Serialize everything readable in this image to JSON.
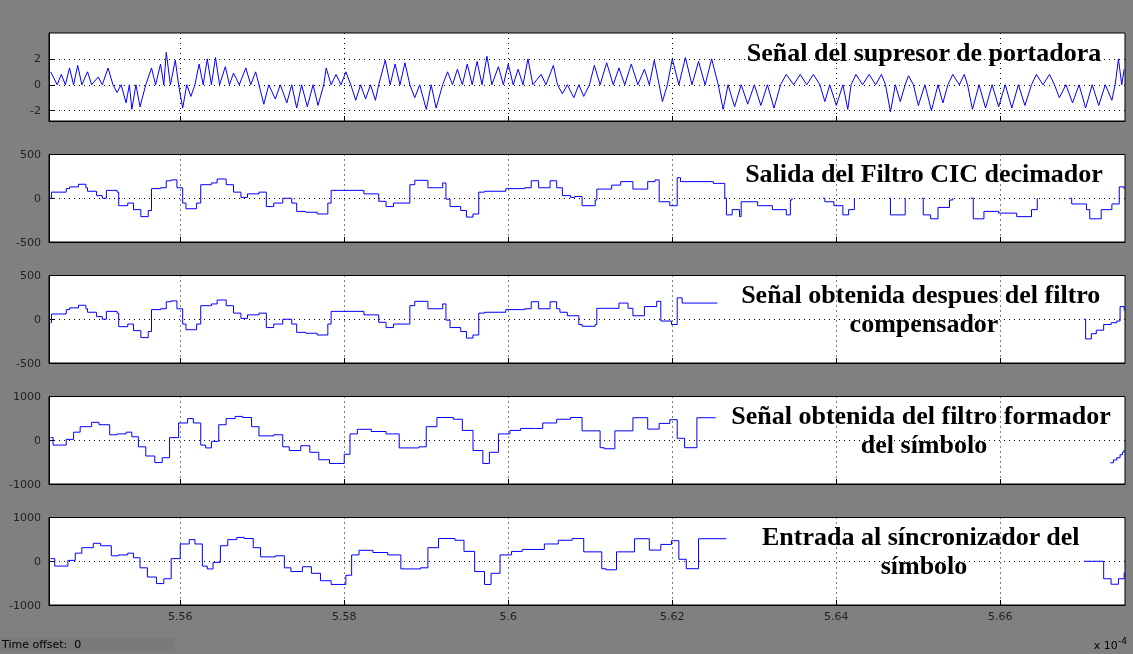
{
  "chart_data": [
    {
      "type": "line",
      "title": "Señal del supresor de portadora",
      "color": "#0000ff",
      "xlim": [
        5.544,
        5.6752
      ],
      "xticks": [
        5.56,
        5.58,
        5.6,
        5.62,
        5.64,
        5.66
      ],
      "ylim": [
        -2.8,
        4
      ],
      "yticks": [
        -2,
        0,
        2
      ],
      "grid": true,
      "tick_labels": "y",
      "x": [
        5.5442,
        5.545,
        5.5455,
        5.546,
        5.5465,
        5.547,
        5.5475,
        5.548,
        5.5487,
        5.5492,
        5.55,
        5.5505,
        5.5512,
        5.5518,
        5.5523,
        5.5528,
        5.5534,
        5.5538,
        5.5541,
        5.5546,
        5.5551,
        5.5558,
        5.5565,
        5.557,
        5.5576,
        5.558,
        5.5583,
        5.5588,
        5.5594,
        5.5598,
        5.5603,
        5.5608,
        5.5613,
        5.5618,
        5.5623,
        5.5628,
        5.5633,
        5.5638,
        5.5643,
        5.5648,
        5.5655,
        5.566,
        5.5665,
        5.5672,
        5.568,
        5.5686,
        5.5692,
        5.5696,
        5.5702,
        5.5708,
        5.5716,
        5.5722,
        5.573,
        5.5736,
        5.5742,
        5.5748,
        5.5755,
        5.5762,
        5.5768,
        5.5775,
        5.5778,
        5.5784,
        5.579,
        5.5796,
        5.5802,
        5.5808,
        5.5814,
        5.582,
        5.5826,
        5.5832,
        5.5838,
        5.5842,
        5.585,
        5.5856,
        5.5862,
        5.5868,
        5.5874,
        5.588,
        5.5886,
        5.5892,
        5.59,
        5.5906,
        5.5912,
        5.592,
        5.5926,
        5.5932,
        5.5938,
        5.5944,
        5.595,
        5.5956,
        5.5962,
        5.5968,
        5.5974,
        5.598,
        5.5988,
        5.5994,
        5.6,
        5.6006,
        5.6012,
        5.6018,
        5.6024,
        5.603,
        5.604,
        5.6046,
        5.6055,
        5.606,
        5.6066,
        5.6072,
        5.608,
        5.6086,
        5.6092,
        5.6099,
        5.6105,
        5.6112,
        5.612,
        5.6128,
        5.6135,
        5.6142,
        5.615,
        5.6158,
        5.6166,
        5.6172,
        5.6178,
        5.6184,
        5.6188,
        5.6194,
        5.62,
        5.6208,
        5.6216,
        5.6224,
        5.6232,
        5.624,
        5.6248,
        5.6256,
        5.6262,
        5.6268,
        5.6276,
        5.6284,
        5.6292,
        5.63,
        5.6308,
        5.6316,
        5.6324,
        5.6332,
        5.6339,
        5.6348,
        5.6356,
        5.6364,
        5.6372,
        5.638,
        5.6386,
        5.6392,
        5.64,
        5.6408,
        5.6414,
        5.6418,
        5.6424,
        5.6432,
        5.644,
        5.6448,
        5.6455,
        5.646,
        5.6466,
        5.6472,
        5.6478,
        5.6484,
        5.6488,
        5.6494,
        5.65,
        5.6508,
        5.6516,
        5.6524,
        5.653,
        5.6536,
        5.6542,
        5.655,
        5.6556,
        5.656,
        5.6566,
        5.6574,
        5.6582,
        5.659,
        5.6598,
        5.6606,
        5.6614,
        5.6622,
        5.663,
        5.6638,
        5.6644,
        5.6652,
        5.666,
        5.6666,
        5.6672,
        5.668,
        5.6688,
        5.6696,
        5.6704,
        5.6712,
        5.672,
        5.6728,
        5.6736,
        5.674,
        5.6744,
        5.6748,
        5.6751
      ],
      "values": [
        1.0,
        0,
        0.8,
        0,
        1.3,
        0,
        1.5,
        0,
        1.0,
        0,
        0.6,
        0,
        1.3,
        0,
        -0.6,
        0,
        -1.4,
        0,
        -1.9,
        0,
        -1.7,
        0,
        1.3,
        0,
        1.6,
        0,
        2.5,
        0,
        1.9,
        0,
        -1.8,
        0,
        -0.9,
        0,
        1.6,
        0,
        2.0,
        0,
        2.1,
        0,
        1.4,
        0,
        0.9,
        0,
        1.3,
        0,
        1.0,
        0,
        -1.5,
        0,
        -1.1,
        0,
        -1.4,
        0,
        -1.8,
        0,
        -1.7,
        0,
        -1.6,
        0,
        1.3,
        0,
        0.8,
        0,
        1.0,
        0,
        -1.2,
        0,
        -1.1,
        0,
        -1.2,
        0,
        1.9,
        0,
        1.6,
        0,
        1.7,
        0,
        -1.0,
        0,
        -1.9,
        0,
        -1.8,
        0,
        1.0,
        0,
        1.2,
        0,
        1.6,
        0,
        1.8,
        0,
        2.2,
        0,
        1.4,
        0,
        1.6,
        0,
        1.2,
        0,
        2.0,
        0,
        0.8,
        0,
        1.5,
        0,
        -0.7,
        0,
        -1.0,
        0,
        -0.9,
        0,
        1.5,
        0,
        1.7,
        0,
        1.3,
        0,
        1.6,
        0,
        1.2,
        0,
        1.9,
        0,
        -1.3,
        0,
        2.0,
        0,
        2.1,
        0,
        1.8,
        0,
        2.0,
        0,
        -1.9,
        0,
        -1.7,
        0,
        -1.5,
        0,
        -1.6,
        0,
        -1.8,
        0,
        0.8,
        0,
        0.8,
        0,
        0.8,
        0,
        -1.3,
        0,
        -1.6,
        0,
        -1.9,
        0,
        0.8,
        0,
        0.8,
        0,
        0.8,
        0,
        -2.1,
        0,
        -1.3,
        0,
        0.7,
        0,
        -1.6,
        0,
        -2.0,
        0,
        -1.4,
        0,
        0.8,
        0,
        0.8,
        0,
        -1.9,
        0,
        -1.8,
        0,
        -1.7,
        0,
        -1.8,
        0,
        -1.6,
        0,
        0.8,
        0,
        0.8,
        0,
        -1.0,
        0,
        -1.4,
        0,
        -1.8,
        0,
        -1.6,
        0,
        -1.2,
        0,
        2.0,
        0,
        1.2
      ]
    },
    {
      "type": "step",
      "title": "Salida del Filtro CIC decimador",
      "color": "#0000ff",
      "xlim": [
        5.544,
        5.6752
      ],
      "xticks": [
        5.56,
        5.58,
        5.6,
        5.62,
        5.64,
        5.66
      ],
      "ylim": [
        -500,
        500
      ],
      "yticks": [
        -500,
        0,
        500
      ],
      "grid": true,
      "tick_labels": "y",
      "x": [
        5.5442,
        5.5443,
        5.5461,
        5.5465,
        5.5476,
        5.5485,
        5.5487,
        5.5498,
        5.5505,
        5.551,
        5.5523,
        5.5525,
        5.5536,
        5.5543,
        5.5552,
        5.5561,
        5.5565,
        5.5576,
        5.5583,
        5.5589,
        5.5596,
        5.5603,
        5.5607,
        5.562,
        5.5625,
        5.5638,
        5.5645,
        5.5656,
        5.5665,
        5.5674,
        5.5682,
        5.5696,
        5.5705,
        5.5714,
        5.5725,
        5.5736,
        5.5742,
        5.5753,
        5.5767,
        5.578,
        5.5784,
        5.58,
        5.5824,
        5.5842,
        5.5851,
        5.586,
        5.588,
        5.5886,
        5.5902,
        5.592,
        5.5924,
        5.5929,
        5.5942,
        5.5949,
        5.5957,
        5.5964,
        5.5971,
        5.5997,
        5.602,
        5.6028,
        5.6037,
        5.6051,
        5.6059,
        5.6066,
        5.6076,
        5.6081,
        5.609,
        5.6106,
        5.6108,
        5.6126,
        5.6137,
        5.6152,
        5.617,
        5.6179,
        5.6184,
        5.6197,
        5.6206,
        5.621,
        5.625,
        5.6255,
        5.6264,
        5.6266,
        5.6273,
        5.6282,
        5.6284,
        5.6295,
        5.6304,
        5.6322,
        5.6339,
        5.6344,
        5.6346,
        5.635,
        5.6384,
        5.6386,
        5.6397,
        5.6408,
        5.6415,
        5.6422,
        5.6426,
        5.6464,
        5.6466,
        5.6482,
        5.6484,
        5.6488,
        5.6504,
        5.6506,
        5.6515,
        5.6524,
        5.6538,
        5.6542,
        5.6546,
        5.6564,
        5.6567,
        5.658,
        5.6598,
        5.662,
        5.6638,
        5.6645,
        5.665,
        5.6685,
        5.6687,
        5.6705,
        5.6709,
        5.6723,
        5.6736,
        5.6745,
        5.6751
      ],
      "values": [
        0,
        70,
        110,
        130,
        160,
        120,
        80,
        30,
        0,
        90,
        70,
        -85,
        -55,
        -130,
        -210,
        -140,
        110,
        120,
        200,
        210,
        120,
        -55,
        -120,
        -55,
        155,
        175,
        220,
        155,
        70,
        10,
        50,
        70,
        -95,
        -55,
        0,
        -55,
        -150,
        -160,
        -180,
        -55,
        90,
        90,
        50,
        -35,
        -95,
        -55,
        155,
        205,
        120,
        175,
        -10,
        -95,
        -140,
        -215,
        -180,
        70,
        80,
        110,
        120,
        200,
        120,
        200,
        120,
        30,
        10,
        20,
        -85,
        -20,
        105,
        150,
        190,
        105,
        190,
        210,
        -40,
        -85,
        235,
        190,
        170,
        170,
        0,
        -190,
        -130,
        -210,
        -40,
        -40,
        -85,
        -130,
        -190,
        -20,
        0,
        null,
        0,
        -40,
        -85,
        -190,
        -130,
        0,
        null,
        0,
        -190,
        -190,
        0,
        null,
        0,
        -190,
        -235,
        -105,
        -20,
        0,
        null,
        0,
        -235,
        -150,
        -170,
        -210,
        -130,
        0,
        null,
        0,
        -65,
        -130,
        -235,
        -130,
        -65,
        130,
        105
      ]
    },
    {
      "type": "step",
      "title": "Señal obtenida despues del filtro compensador",
      "color": "#0000ff",
      "xlim": [
        5.544,
        5.6752
      ],
      "xticks": [
        5.56,
        5.58,
        5.6,
        5.62,
        5.64,
        5.66
      ],
      "ylim": [
        -500,
        500
      ],
      "yticks": [
        -500,
        0,
        500
      ],
      "grid": true,
      "tick_labels": "y",
      "x": [
        5.5442,
        5.5443,
        5.5461,
        5.5465,
        5.5476,
        5.5485,
        5.5487,
        5.5498,
        5.5505,
        5.551,
        5.5523,
        5.5525,
        5.5536,
        5.5543,
        5.5552,
        5.5561,
        5.5565,
        5.5576,
        5.5583,
        5.5589,
        5.5596,
        5.5603,
        5.5607,
        5.562,
        5.5625,
        5.5638,
        5.5645,
        5.5656,
        5.5665,
        5.5674,
        5.5682,
        5.5696,
        5.5705,
        5.5714,
        5.5725,
        5.5736,
        5.5742,
        5.5753,
        5.5767,
        5.578,
        5.5784,
        5.58,
        5.5824,
        5.5842,
        5.5851,
        5.586,
        5.588,
        5.5886,
        5.5902,
        5.592,
        5.5924,
        5.5929,
        5.5942,
        5.5949,
        5.5957,
        5.5964,
        5.5971,
        5.5997,
        5.602,
        5.6028,
        5.6037,
        5.6051,
        5.6059,
        5.6063,
        5.6072,
        5.6086,
        5.609,
        5.6106,
        5.6108,
        5.6135,
        5.6146,
        5.6152,
        5.6166,
        5.6181,
        5.6186,
        5.6199,
        5.6206,
        5.6212,
        5.6255,
        5.626,
        5.6702,
        5.6704,
        5.6711,
        5.6717,
        5.6726,
        5.6735,
        5.6742,
        5.6746,
        5.6751
      ],
      "values": [
        -40,
        60,
        110,
        130,
        160,
        120,
        80,
        30,
        0,
        90,
        70,
        -85,
        -55,
        -130,
        -210,
        -140,
        110,
        120,
        200,
        210,
        120,
        -55,
        -120,
        -55,
        155,
        175,
        220,
        155,
        70,
        10,
        50,
        70,
        -95,
        -55,
        0,
        -55,
        -150,
        -160,
        -180,
        -55,
        90,
        90,
        50,
        -35,
        -95,
        -55,
        155,
        205,
        120,
        175,
        -10,
        -95,
        -140,
        -215,
        -180,
        70,
        80,
        110,
        120,
        200,
        120,
        200,
        120,
        80,
        40,
        -60,
        -80,
        -60,
        125,
        185,
        125,
        40,
        145,
        205,
        -20,
        -60,
        245,
        185,
        185,
        null,
        0,
        -225,
        -165,
        -125,
        -60,
        -40,
        -20,
        145,
        100
      ]
    },
    {
      "type": "step",
      "title": "Señal obtenida del filtro formador del símbolo",
      "color": "#0000ff",
      "xlim": [
        5.544,
        5.6752
      ],
      "xticks": [
        5.56,
        5.58,
        5.6,
        5.62,
        5.64,
        5.66
      ],
      "ylim": [
        -1000,
        1000
      ],
      "yticks": [
        -1000,
        0,
        1000
      ],
      "grid": true,
      "tick_labels": "y",
      "x": [
        5.5442,
        5.5445,
        5.5461,
        5.547,
        5.5478,
        5.5492,
        5.5501,
        5.5514,
        5.5523,
        5.5534,
        5.5541,
        5.5549,
        5.5558,
        5.5569,
        5.5578,
        5.5587,
        5.5598,
        5.5609,
        5.5616,
        5.5625,
        5.5631,
        5.5638,
        5.5647,
        5.5656,
        5.5667,
        5.5676,
        5.5687,
        5.5696,
        5.5714,
        5.5725,
        5.5733,
        5.5747,
        5.5758,
        5.5769,
        5.5782,
        5.5791,
        5.58,
        5.5807,
        5.5816,
        5.5833,
        5.5851,
        5.5867,
        5.5891,
        5.59,
        5.5913,
        5.5933,
        5.5944,
        5.5957,
        5.5969,
        5.5977,
        5.5988,
        5.6002,
        5.6015,
        5.6033,
        5.6042,
        5.6059,
        5.6076,
        5.609,
        5.6112,
        5.6117,
        5.613,
        5.6152,
        5.617,
        5.6184,
        5.6197,
        5.6206,
        5.6215,
        5.623,
        5.6253,
        5.6258,
        5.6734,
        5.6738,
        5.6742,
        5.6746,
        5.6749,
        5.6751
      ],
      "values": [
        60,
        -110,
        20,
        185,
        310,
        410,
        355,
        125,
        145,
        185,
        80,
        -150,
        -360,
        -510,
        -400,
        60,
        395,
        495,
        395,
        -110,
        -175,
        -25,
        355,
        495,
        545,
        520,
        310,
        100,
        125,
        -150,
        -235,
        -125,
        -275,
        -445,
        -530,
        -530,
        -320,
        145,
        250,
        200,
        145,
        -175,
        -150,
        310,
        520,
        480,
        225,
        -235,
        -530,
        -275,
        145,
        225,
        270,
        270,
        395,
        480,
        520,
        215,
        -170,
        -195,
        215,
        515,
        255,
        385,
        470,
        45,
        -170,
        515,
        515,
        null,
        -515,
        -450,
        -400,
        -330,
        -270,
        -215
      ]
    },
    {
      "type": "step",
      "title": "Entrada al síncronizador del símbolo",
      "color": "#0000ff",
      "xlim": [
        5.544,
        5.6752
      ],
      "xticks": [
        5.56,
        5.58,
        5.6,
        5.62,
        5.64,
        5.66
      ],
      "ylim": [
        -1000,
        1000
      ],
      "yticks": [
        -1000,
        0,
        1000
      ],
      "grid": true,
      "xlabel": "x 10$^{-4}$",
      "annotations": [
        "Time offset:  0"
      ],
      "x": [
        5.5442,
        5.5447,
        5.5463,
        5.5472,
        5.548,
        5.5494,
        5.5503,
        5.5516,
        5.5525,
        5.5536,
        5.5543,
        5.5551,
        5.556,
        5.5571,
        5.558,
        5.5589,
        5.56,
        5.5611,
        5.5618,
        5.5627,
        5.5633,
        5.564,
        5.5649,
        5.5658,
        5.5669,
        5.5678,
        5.5689,
        5.5698,
        5.5716,
        5.5727,
        5.5735,
        5.5749,
        5.576,
        5.5771,
        5.5784,
        5.5793,
        5.5802,
        5.5809,
        5.5818,
        5.5835,
        5.5853,
        5.5869,
        5.5893,
        5.5902,
        5.5915,
        5.5935,
        5.5946,
        5.5959,
        5.5971,
        5.5979,
        5.599,
        5.6004,
        5.6017,
        5.6035,
        5.6044,
        5.6061,
        5.6078,
        5.6092,
        5.6114,
        5.6119,
        5.6132,
        5.6154,
        5.6172,
        5.6186,
        5.6199,
        5.6208,
        5.6217,
        5.6232,
        5.6266,
        5.627,
        5.6702,
        5.6726,
        5.6735,
        5.6744,
        5.6751
      ],
      "values": [
        60,
        -110,
        20,
        185,
        310,
        410,
        355,
        125,
        145,
        185,
        80,
        -150,
        -360,
        -510,
        -400,
        60,
        395,
        495,
        395,
        -110,
        -175,
        -25,
        355,
        495,
        545,
        520,
        310,
        100,
        125,
        -150,
        -235,
        -125,
        -275,
        -445,
        -530,
        -530,
        -320,
        145,
        250,
        200,
        145,
        -175,
        -150,
        310,
        520,
        480,
        225,
        -235,
        -530,
        -275,
        145,
        225,
        270,
        270,
        395,
        480,
        520,
        215,
        -170,
        -195,
        215,
        515,
        255,
        385,
        470,
        45,
        -170,
        515,
        515,
        null,
        0,
        -400,
        -525,
        -400,
        -255
      ]
    }
  ]
}
